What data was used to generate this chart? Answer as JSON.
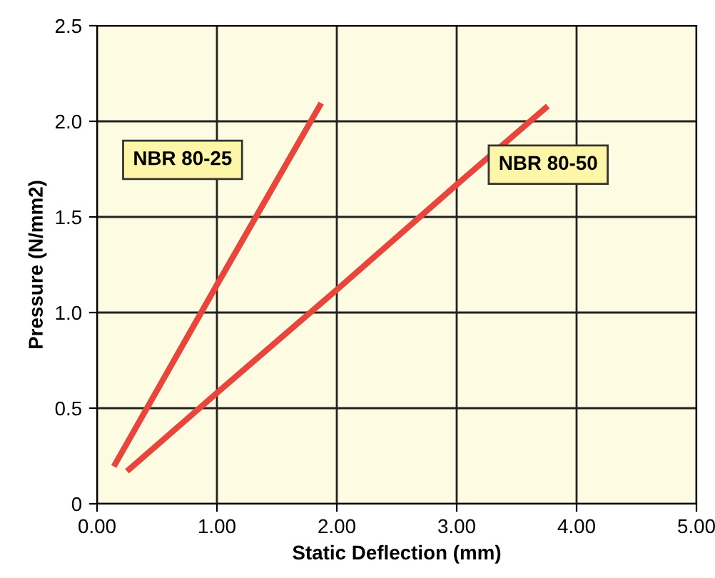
{
  "chart_data": {
    "type": "line",
    "xlabel": "Static Deflection (mm)",
    "ylabel": "Pressure (N/mm2)",
    "xlim": [
      0,
      5
    ],
    "ylim": [
      0,
      2.5
    ],
    "xticks": [
      {
        "value": 0,
        "label": "0.00"
      },
      {
        "value": 1,
        "label": "1.00"
      },
      {
        "value": 2,
        "label": "2.00"
      },
      {
        "value": 3,
        "label": "3.00"
      },
      {
        "value": 4,
        "label": "4.00"
      },
      {
        "value": 5,
        "label": "5.00"
      }
    ],
    "yticks": [
      0,
      {
        "value": 0.5,
        "label": "0.5"
      },
      {
        "value": 1,
        "label": "1.0"
      },
      {
        "value": 1.5,
        "label": "1.5"
      },
      {
        "value": 2,
        "label": "2.0"
      },
      {
        "value": 2.5,
        "label": "2.5"
      }
    ],
    "grid": true,
    "marker": "none",
    "line_style": "solid",
    "series": [
      {
        "name": "NBR 80-25",
        "color": "#e8453c",
        "x": [
          0.14,
          1.0,
          1.87
        ],
        "values": [
          0.195,
          1.145,
          2.095
        ]
      },
      {
        "name": "NBR 80-50",
        "color": "#e8453c",
        "x": [
          0.25,
          1.0,
          2.02,
          3.02,
          3.76
        ],
        "values": [
          0.17,
          0.58,
          1.13,
          1.68,
          2.08
        ]
      }
    ]
  }
}
